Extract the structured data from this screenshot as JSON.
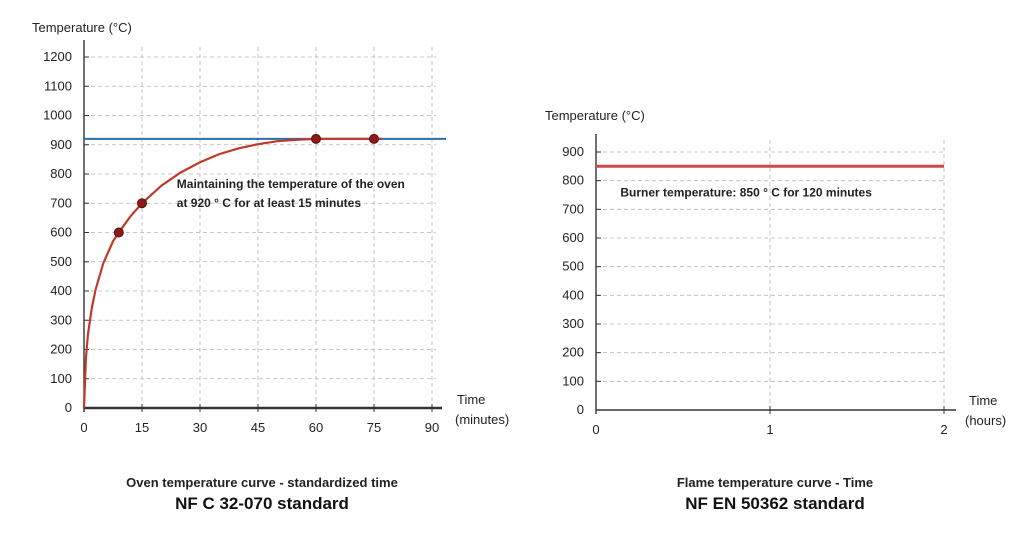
{
  "chart_data": [
    {
      "type": "line",
      "ylabel": "Temperature (°C)",
      "xlabel_line1": "Time",
      "xlabel_line2": "(minutes)",
      "xticks": [
        0,
        15,
        30,
        45,
        60,
        75,
        90
      ],
      "yticks": [
        0,
        100,
        200,
        300,
        400,
        500,
        600,
        700,
        800,
        900,
        1000,
        1100,
        1200
      ],
      "xlim": [
        0,
        90
      ],
      "ylim": [
        0,
        1200
      ],
      "grid": true,
      "threshold": {
        "y": 920,
        "color": "#2a6fa8"
      },
      "curve": {
        "color": "#c0392b",
        "x": [
          0,
          0.5,
          1,
          2,
          3,
          5,
          7.5,
          9,
          12,
          15,
          20,
          25,
          30,
          35,
          40,
          45,
          50,
          55,
          60,
          65,
          70,
          75,
          77
        ],
        "y": [
          0,
          170,
          250,
          340,
          405,
          495,
          570,
          600,
          655,
          700,
          760,
          805,
          840,
          868,
          888,
          902,
          912,
          917,
          920,
          920,
          920,
          920,
          920
        ]
      },
      "markers": [
        {
          "x": 9,
          "y": 600
        },
        {
          "x": 15,
          "y": 700
        },
        {
          "x": 60,
          "y": 920
        },
        {
          "x": 75,
          "y": 920
        }
      ],
      "annotation": {
        "line1": "Maintaining the temperature of the oven",
        "line2": "at 920 ° C for at least 15 minutes",
        "x": 24,
        "y": 735
      },
      "caption_sub": "Oven temperature curve - standardized time",
      "caption_main": "NF C 32-070 standard"
    },
    {
      "type": "line",
      "ylabel": "Temperature (°C)",
      "xlabel_line1": "Time",
      "xlabel_line2": "(hours)",
      "xticks": [
        0,
        1,
        2
      ],
      "yticks": [
        0,
        100,
        200,
        300,
        400,
        500,
        600,
        700,
        800,
        900
      ],
      "xlim": [
        0,
        2
      ],
      "ylim": [
        0,
        900
      ],
      "grid": true,
      "series": [
        {
          "x": [
            0,
            2
          ],
          "y": [
            850,
            850
          ],
          "color": "#d0474a"
        }
      ],
      "annotation": {
        "line1": "Burner temperature: 850 ° C for 120 minutes",
        "x": 0.14,
        "y": 745
      },
      "caption_sub": "Flame temperature curve - Time",
      "caption_main": "NF EN 50362 standard"
    }
  ]
}
